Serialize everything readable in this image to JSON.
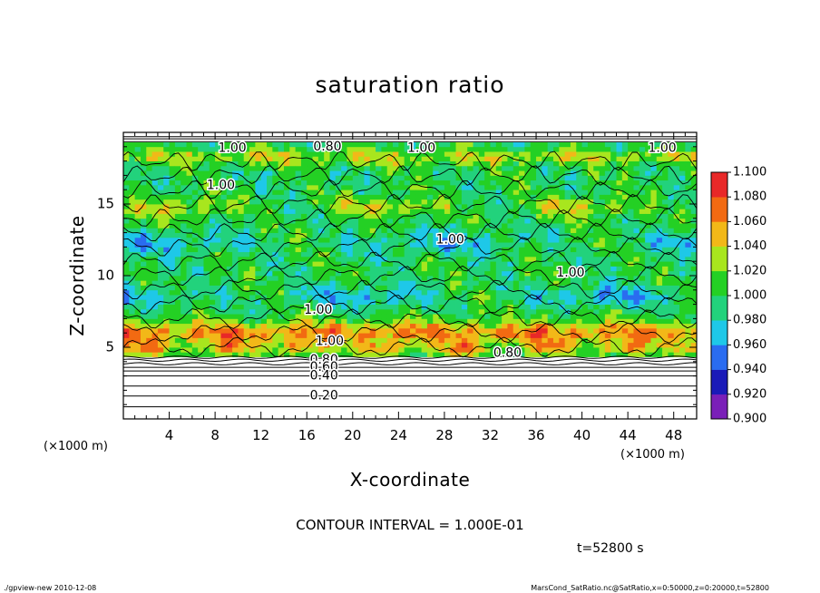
{
  "chart_data": {
    "type": "heatmap",
    "title": "saturation ratio",
    "xlabel": "X-coordinate",
    "ylabel": "Z-coordinate",
    "x_unit_label": "(×1000 m)",
    "y_unit_label": "(×1000 m)",
    "xlim": [
      0,
      50
    ],
    "ylim": [
      0,
      20
    ],
    "x_ticks": [
      4,
      8,
      12,
      16,
      20,
      24,
      28,
      32,
      36,
      40,
      44,
      48
    ],
    "y_ticks": [
      5,
      10,
      15
    ],
    "colorbar": {
      "levels": [
        "0.900",
        "0.920",
        "0.940",
        "0.960",
        "0.980",
        "1.000",
        "1.020",
        "1.040",
        "1.060",
        "1.080",
        "1.100"
      ],
      "colors": [
        "#7a1fb8",
        "#1a1ab8",
        "#2a6cf0",
        "#1ec8e8",
        "#22d27c",
        "#24d024",
        "#a8e61e",
        "#f2b818",
        "#f26a12",
        "#e82828",
        "#f59aa0"
      ]
    },
    "contour_labels": [
      {
        "text": "1.00",
        "x": 9.5,
        "z": 18.9
      },
      {
        "text": "0.80",
        "x": 17.8,
        "z": 19.0
      },
      {
        "text": "1.00",
        "x": 26.0,
        "z": 18.9
      },
      {
        "text": "1.00",
        "x": 47.0,
        "z": 18.9
      },
      {
        "text": "1.00",
        "x": 8.5,
        "z": 16.3
      },
      {
        "text": "1.00",
        "x": 28.5,
        "z": 12.5
      },
      {
        "text": "1.00",
        "x": 39.0,
        "z": 10.2
      },
      {
        "text": "1.00",
        "x": 17.0,
        "z": 7.6
      },
      {
        "text": "1.00",
        "x": 18.0,
        "z": 5.4
      },
      {
        "text": "0.80",
        "x": 33.5,
        "z": 4.6
      },
      {
        "text": "0.80",
        "x": 17.5,
        "z": 4.1
      },
      {
        "text": "0.60",
        "x": 17.5,
        "z": 3.6
      },
      {
        "text": "0.40",
        "x": 17.5,
        "z": 3.0
      },
      {
        "text": "0.20",
        "x": 17.5,
        "z": 1.6
      }
    ],
    "annotations": {
      "contour_interval": "CONTOUR INTERVAL = 1.000E-01",
      "time": "t=52800 s",
      "footer_left": "./gpview-new  2010-12-08",
      "footer_right": "MarsCond_SatRatio.nc@SatRatio,x=0:50000,z=0:20000,t=52800"
    }
  }
}
